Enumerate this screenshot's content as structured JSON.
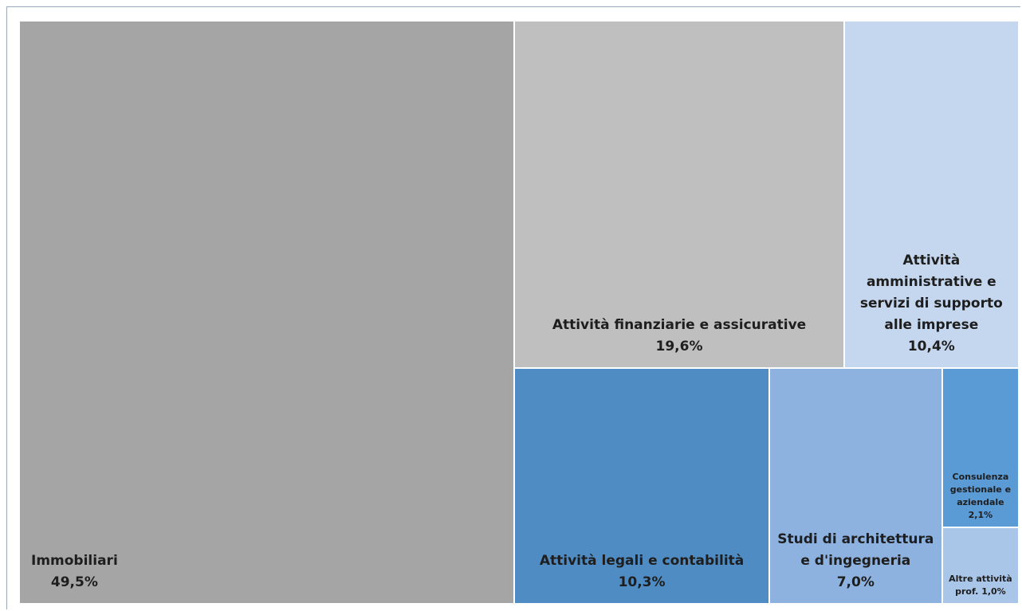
{
  "chart_data": {
    "type": "treemap",
    "categories": [
      "Immobiliari",
      "Attività finanziarie e assicurative",
      "Attività amministrative e servizi di supporto alle imprese",
      "Attività legali e contabilità",
      "Studi di architettura e d'ingegneria",
      "Consulenza gestionale e aziendale",
      "Altre attività prof."
    ],
    "values": [
      49.5,
      19.6,
      10.4,
      10.3,
      7.0,
      2.1,
      1.0
    ],
    "value_labels": [
      "49,5%",
      "19,6%",
      "10,4%",
      "10,3%",
      "7,0%",
      "2,1%",
      "1,0%"
    ],
    "colors": [
      "#a5a5a5",
      "#bfbfbf",
      "#c5d7ee",
      "#4f8cc4",
      "#8db2df",
      "#5b9bd5",
      "#a9c5e8"
    ]
  }
}
